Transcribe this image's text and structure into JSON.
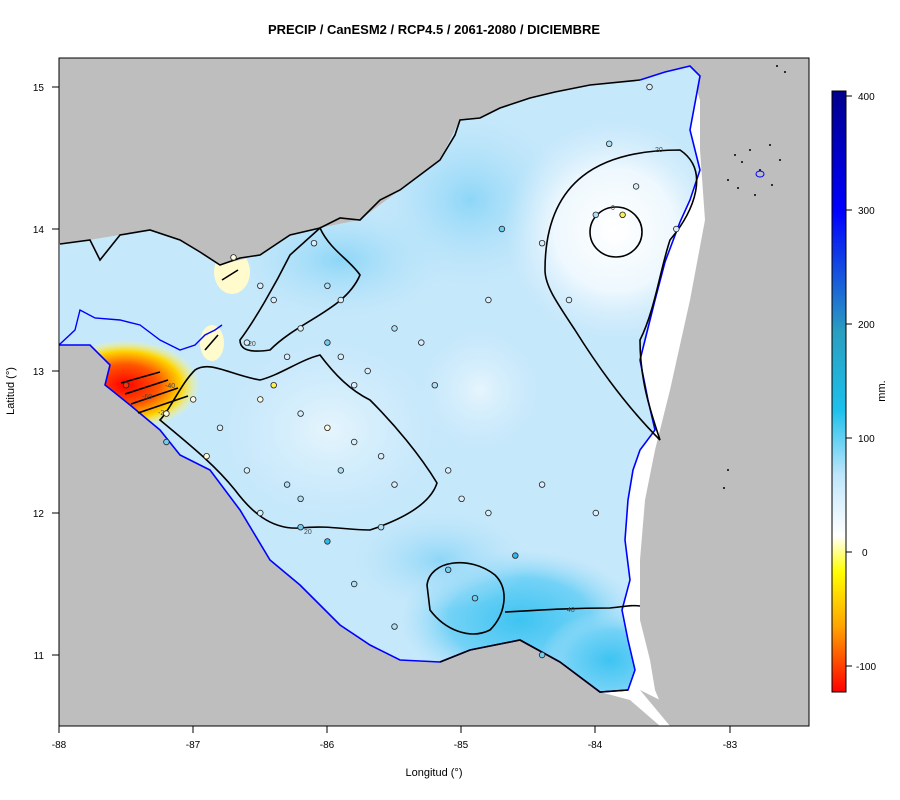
{
  "title": "PRECIP / CanESM2 / RCP4.5 / 2061-2080 / DICIEMBRE",
  "x_axis": {
    "label": "Longitud (°)",
    "ticks": [
      "-88",
      "-87",
      "-86",
      "-85",
      "-84",
      "-83"
    ]
  },
  "y_axis": {
    "label": "Latitud (°)",
    "ticks": [
      "15",
      "14",
      "13",
      "12",
      "11"
    ]
  },
  "colorbar": {
    "label": "mm.",
    "ticks": [
      "400",
      "300",
      "200",
      "100",
      "0",
      "-100"
    ],
    "colors": [
      "#ff0000",
      "#ffa500",
      "#ffff00",
      "#ffffff",
      "#bfe6fb",
      "#1cc0ec",
      "#2a9ec0",
      "#0000ff",
      "#00008b"
    ]
  },
  "contour_labels": [
    "20",
    "0",
    "20",
    "20",
    "40",
    "-60",
    "-40",
    "-20"
  ],
  "colors": {
    "land": "#bebebe",
    "coastline": "#0000ff",
    "border": "#000000",
    "field_base": "#c6e8fb"
  },
  "chart_data": {
    "type": "map",
    "title": "PRECIP / CanESM2 / RCP4.5 / 2061-2080 / DICIEMBRE",
    "xlabel": "Longitud (°)",
    "ylabel": "Latitud (°)",
    "xlim": [
      -88,
      -82.4
    ],
    "ylim": [
      10.5,
      15.2
    ],
    "colorbar_range": [
      -120,
      405
    ],
    "colorbar_label": "mm.",
    "contour_levels": [
      -60,
      -40,
      -20,
      0,
      20,
      40
    ],
    "stations": [
      {
        "lon": -87.5,
        "lat": 12.9,
        "value": -90
      },
      {
        "lon": -87.2,
        "lat": 12.7,
        "value": 0
      },
      {
        "lon": -86.7,
        "lat": 13.8,
        "value": 0
      },
      {
        "lon": -86.5,
        "lat": 13.6,
        "value": 15
      },
      {
        "lon": -86.4,
        "lat": 13.5,
        "value": 10
      },
      {
        "lon": -86.1,
        "lat": 13.9,
        "value": 20
      },
      {
        "lon": -86.0,
        "lat": 13.6,
        "value": 30
      },
      {
        "lon": -85.9,
        "lat": 13.5,
        "value": 10
      },
      {
        "lon": -86.2,
        "lat": 13.3,
        "value": 20
      },
      {
        "lon": -86.6,
        "lat": 13.2,
        "value": 10
      },
      {
        "lon": -86.3,
        "lat": 13.1,
        "value": 15
      },
      {
        "lon": -86.0,
        "lat": 13.2,
        "value": 40
      },
      {
        "lon": -85.9,
        "lat": 13.1,
        "value": 20
      },
      {
        "lon": -85.8,
        "lat": 12.9,
        "value": 10
      },
      {
        "lon": -86.4,
        "lat": 12.9,
        "value": -10
      },
      {
        "lon": -86.5,
        "lat": 12.8,
        "value": 0
      },
      {
        "lon": -86.2,
        "lat": 12.7,
        "value": 10
      },
      {
        "lon": -86.0,
        "lat": 12.6,
        "value": 5
      },
      {
        "lon": -85.8,
        "lat": 12.5,
        "value": 20
      },
      {
        "lon": -85.6,
        "lat": 12.4,
        "value": 15
      },
      {
        "lon": -85.9,
        "lat": 12.3,
        "value": 25
      },
      {
        "lon": -86.3,
        "lat": 12.2,
        "value": 30
      },
      {
        "lon": -86.5,
        "lat": 12.0,
        "value": 20
      },
      {
        "lon": -86.2,
        "lat": 11.9,
        "value": 40
      },
      {
        "lon": -86.0,
        "lat": 11.8,
        "value": 60
      },
      {
        "lon": -85.8,
        "lat": 11.5,
        "value": 30
      },
      {
        "lon": -85.5,
        "lat": 11.2,
        "value": 35
      },
      {
        "lon": -85.1,
        "lat": 11.6,
        "value": 50
      },
      {
        "lon": -84.9,
        "lat": 11.4,
        "value": 40
      },
      {
        "lon": -84.6,
        "lat": 11.7,
        "value": 55
      },
      {
        "lon": -84.4,
        "lat": 11.0,
        "value": 40
      },
      {
        "lon": -85.5,
        "lat": 12.2,
        "value": 20
      },
      {
        "lon": -85.0,
        "lat": 12.1,
        "value": 20
      },
      {
        "lon": -84.8,
        "lat": 12.0,
        "value": 10
      },
      {
        "lon": -84.4,
        "lat": 12.2,
        "value": 20
      },
      {
        "lon": -84.0,
        "lat": 12.0,
        "value": 15
      },
      {
        "lon": -85.2,
        "lat": 12.9,
        "value": 30
      },
      {
        "lon": -85.1,
        "lat": 12.3,
        "value": 20
      },
      {
        "lon": -84.8,
        "lat": 13.5,
        "value": 20
      },
      {
        "lon": -84.7,
        "lat": 14.0,
        "value": 40
      },
      {
        "lon": -84.4,
        "lat": 13.9,
        "value": 20
      },
      {
        "lon": -84.2,
        "lat": 13.5,
        "value": 20
      },
      {
        "lon": -83.9,
        "lat": 14.6,
        "value": 25
      },
      {
        "lon": -84.0,
        "lat": 14.1,
        "value": 30
      },
      {
        "lon": -83.8,
        "lat": 14.1,
        "value": -20
      },
      {
        "lon": -83.7,
        "lat": 14.3,
        "value": 10
      },
      {
        "lon": -83.4,
        "lat": 14.0,
        "value": 15
      },
      {
        "lon": -83.6,
        "lat": 15.0,
        "value": 15
      },
      {
        "lon": -85.3,
        "lat": 13.2,
        "value": 20
      },
      {
        "lon": -85.5,
        "lat": 13.3,
        "value": 25
      },
      {
        "lon": -85.7,
        "lat": 13.0,
        "value": 15
      },
      {
        "lon": -86.8,
        "lat": 12.6,
        "value": 10
      },
      {
        "lon": -86.9,
        "lat": 12.4,
        "value": 5
      },
      {
        "lon": -87.0,
        "lat": 12.8,
        "value": -5
      },
      {
        "lon": -86.6,
        "lat": 12.3,
        "value": 20
      },
      {
        "lon": -87.2,
        "lat": 12.5,
        "value": 40
      },
      {
        "lon": -86.2,
        "lat": 12.1,
        "value": 30
      },
      {
        "lon": -85.6,
        "lat": 11.9,
        "value": 25
      }
    ]
  }
}
